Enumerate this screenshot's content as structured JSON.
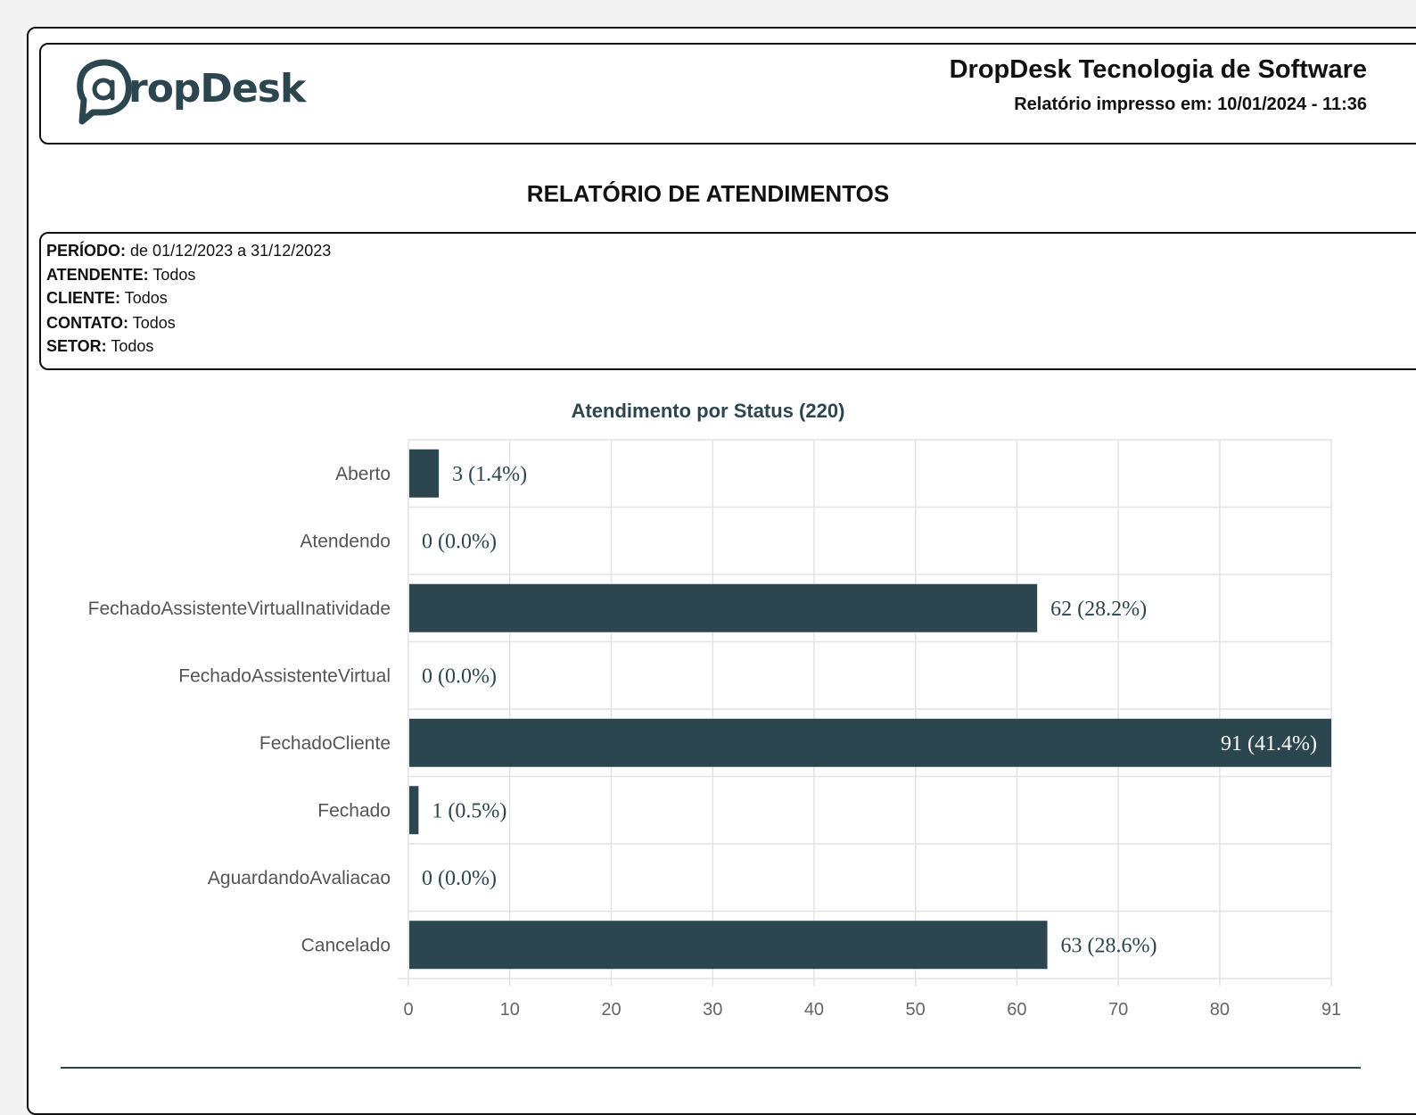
{
  "header": {
    "logo_text": "ropDesk",
    "company": "DropDesk Tecnologia de Software",
    "printed_at": "Relatório impresso em: 10/01/2024 - 11:36"
  },
  "report_title": "RELATÓRIO DE ATENDIMENTOS",
  "filters": [
    {
      "label": "PERÍODO:",
      "value": "de 01/12/2023 a 31/12/2023"
    },
    {
      "label": "ATENDENTE:",
      "value": "Todos"
    },
    {
      "label": "CLIENTE:",
      "value": "Todos"
    },
    {
      "label": "CONTATO:",
      "value": "Todos"
    },
    {
      "label": "SETOR:",
      "value": "Todos"
    }
  ],
  "colors": {
    "bar": "#2c4650",
    "grid": "#e3e3e3"
  },
  "chart_data": {
    "type": "bar",
    "orientation": "horizontal",
    "title": "Atendimento por Status (220)",
    "categories": [
      "Aberto",
      "Atendendo",
      "FechadoAssistenteVirtualInatividade",
      "FechadoAssistenteVirtual",
      "FechadoCliente",
      "Fechado",
      "AguardandoAvaliacao",
      "Cancelado"
    ],
    "values": [
      3,
      0,
      62,
      0,
      91,
      1,
      0,
      63
    ],
    "data_labels": [
      "3 (1.4%)",
      "0 (0.0%)",
      "62 (28.2%)",
      "0 (0.0%)",
      "91 (41.4%)",
      "1 (0.5%)",
      "0 (0.0%)",
      "63 (28.6%)"
    ],
    "xlim": [
      0,
      91
    ],
    "x_ticks": [
      0,
      10,
      20,
      30,
      40,
      50,
      60,
      70,
      80,
      91
    ],
    "grid": true,
    "legend": "none"
  }
}
